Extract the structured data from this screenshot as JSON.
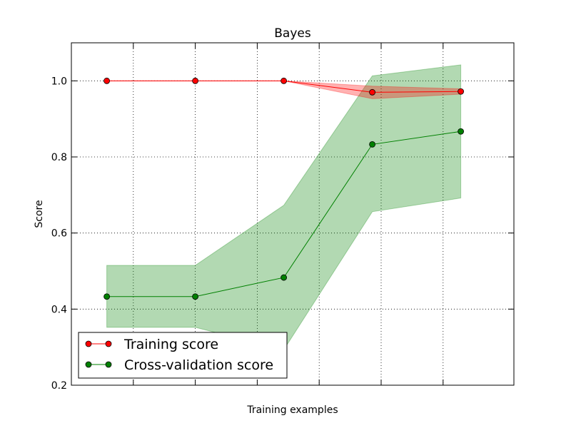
{
  "chart_data": {
    "type": "line",
    "title": "Bayes",
    "xlabel": "Training examples",
    "ylabel": "Score",
    "x": [
      1,
      2,
      3,
      4,
      5
    ],
    "xlim": [
      0.6,
      5.6
    ],
    "ylim": [
      0.2,
      1.1
    ],
    "yticks": [
      0.2,
      0.4,
      0.6,
      0.8,
      1.0
    ],
    "ytick_labels": [
      "0.2",
      "0.4",
      "0.6",
      "0.8",
      "1.0"
    ],
    "xticks": [
      1.3,
      2.0,
      2.7,
      3.4,
      4.1,
      4.8
    ],
    "grid": true,
    "legend_position": "lower-left",
    "series": [
      {
        "name": "Training score",
        "color": "#ff0000",
        "values": [
          1.0,
          1.0,
          1.0,
          0.97,
          0.972
        ],
        "band_low": [
          1.0,
          1.0,
          1.0,
          0.953,
          0.965
        ],
        "band_high": [
          1.0,
          1.0,
          1.0,
          0.986,
          0.979
        ]
      },
      {
        "name": "Cross-validation score",
        "color": "#008000",
        "values": [
          0.433,
          0.433,
          0.483,
          0.833,
          0.867
        ],
        "band_low": [
          0.352,
          0.352,
          0.293,
          0.656,
          0.692
        ],
        "band_high": [
          0.515,
          0.515,
          0.673,
          1.013,
          1.042
        ]
      }
    ]
  }
}
